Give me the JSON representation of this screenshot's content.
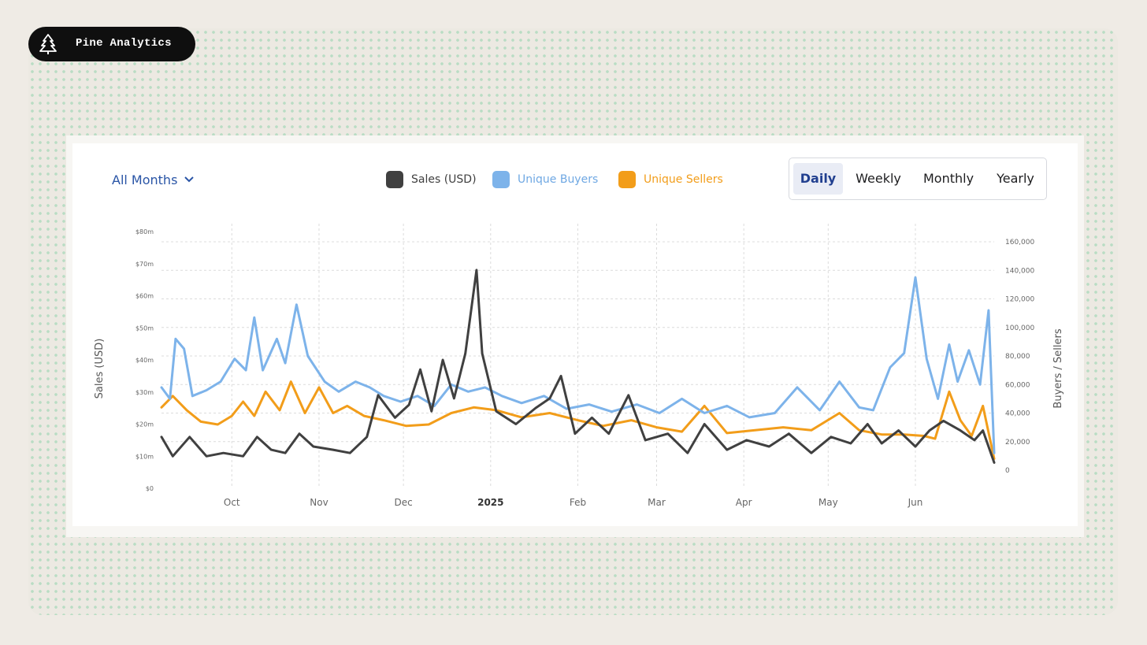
{
  "brand": {
    "name": "Pine Analytics",
    "logo_icon": "pine-tree-icon"
  },
  "controls": {
    "month_filter": {
      "label": "All Months",
      "icon": "chevron-down-icon"
    },
    "legend": [
      {
        "label": "Sales (USD)",
        "color": "#404040"
      },
      {
        "label": "Unique Buyers",
        "color": "#7db3ea"
      },
      {
        "label": "Unique Sellers",
        "color": "#f29d1a"
      }
    ],
    "periods": [
      "Daily",
      "Weekly",
      "Monthly",
      "Yearly"
    ],
    "active_period": "Daily"
  },
  "chart_data": {
    "type": "line",
    "title": "",
    "xlabel": "",
    "ylabel_left": "Sales (USD)",
    "ylabel_right": "Buyers / Sellers",
    "x_range": [
      "2024-09-06",
      "2025-06-29"
    ],
    "x_ticks": [
      {
        "date": "2024-10-01",
        "label": "Oct",
        "bold": false
      },
      {
        "date": "2024-11-01",
        "label": "Nov",
        "bold": false
      },
      {
        "date": "2024-12-01",
        "label": "Dec",
        "bold": false
      },
      {
        "date": "2025-01-01",
        "label": "2025",
        "bold": true
      },
      {
        "date": "2025-02-01",
        "label": "Feb",
        "bold": false
      },
      {
        "date": "2025-03-01",
        "label": "Mar",
        "bold": false
      },
      {
        "date": "2025-04-01",
        "label": "Apr",
        "bold": false
      },
      {
        "date": "2025-05-01",
        "label": "May",
        "bold": false
      },
      {
        "date": "2025-06-01",
        "label": "Jun",
        "bold": false
      }
    ],
    "y_left": {
      "min": 0,
      "max": 80000000,
      "ticks": [
        0,
        10000000,
        20000000,
        30000000,
        40000000,
        50000000,
        60000000,
        70000000,
        80000000
      ],
      "tick_labels": [
        "$0",
        "$10m",
        "$20m",
        "$30m",
        "$40m",
        "$50m",
        "$60m",
        "$70m",
        "$80m"
      ]
    },
    "y_right": {
      "min": 0,
      "max": 160000,
      "ticks": [
        0,
        20000,
        40000,
        60000,
        80000,
        100000,
        120000,
        140000,
        160000
      ],
      "tick_labels": [
        "0",
        "20,000",
        "40,000",
        "60,000",
        "80,000",
        "100,000",
        "120,000",
        "140,000",
        "160,000"
      ]
    },
    "series": [
      {
        "name": "Sales (USD)",
        "axis": "left",
        "color": "#404040",
        "points": [
          [
            "2024-09-06",
            16000000
          ],
          [
            "2024-09-10",
            10000000
          ],
          [
            "2024-09-16",
            16000000
          ],
          [
            "2024-09-22",
            10000000
          ],
          [
            "2024-09-28",
            11000000
          ],
          [
            "2024-10-05",
            10000000
          ],
          [
            "2024-10-10",
            16000000
          ],
          [
            "2024-10-15",
            12000000
          ],
          [
            "2024-10-20",
            11000000
          ],
          [
            "2024-10-25",
            17000000
          ],
          [
            "2024-10-30",
            13000000
          ],
          [
            "2024-11-06",
            12000000
          ],
          [
            "2024-11-12",
            11000000
          ],
          [
            "2024-11-18",
            16000000
          ],
          [
            "2024-11-22",
            29000000
          ],
          [
            "2024-11-28",
            22000000
          ],
          [
            "2024-12-03",
            26000000
          ],
          [
            "2024-12-07",
            37000000
          ],
          [
            "2024-12-11",
            24000000
          ],
          [
            "2024-12-15",
            40000000
          ],
          [
            "2024-12-19",
            28000000
          ],
          [
            "2024-12-23",
            42000000
          ],
          [
            "2024-12-27",
            68000000
          ],
          [
            "2024-12-29",
            42000000
          ],
          [
            "2025-01-03",
            24000000
          ],
          [
            "2025-01-10",
            20000000
          ],
          [
            "2025-01-17",
            25000000
          ],
          [
            "2025-01-22",
            28000000
          ],
          [
            "2025-01-26",
            35000000
          ],
          [
            "2025-01-31",
            17000000
          ],
          [
            "2025-02-06",
            22000000
          ],
          [
            "2025-02-12",
            17000000
          ],
          [
            "2025-02-19",
            29000000
          ],
          [
            "2025-02-25",
            15000000
          ],
          [
            "2025-03-05",
            17000000
          ],
          [
            "2025-03-12",
            11000000
          ],
          [
            "2025-03-18",
            20000000
          ],
          [
            "2025-03-26",
            12000000
          ],
          [
            "2025-04-02",
            15000000
          ],
          [
            "2025-04-10",
            13000000
          ],
          [
            "2025-04-17",
            17000000
          ],
          [
            "2025-04-25",
            11000000
          ],
          [
            "2025-05-02",
            16000000
          ],
          [
            "2025-05-09",
            14000000
          ],
          [
            "2025-05-15",
            20000000
          ],
          [
            "2025-05-20",
            14000000
          ],
          [
            "2025-05-26",
            18000000
          ],
          [
            "2025-06-01",
            13000000
          ],
          [
            "2025-06-06",
            18000000
          ],
          [
            "2025-06-11",
            21000000
          ],
          [
            "2025-06-17",
            18000000
          ],
          [
            "2025-06-22",
            15000000
          ],
          [
            "2025-06-25",
            18000000
          ],
          [
            "2025-06-29",
            8000000
          ]
        ]
      },
      {
        "name": "Unique Buyers",
        "axis": "right",
        "color": "#7db3ea",
        "points": [
          [
            "2024-09-06",
            58000
          ],
          [
            "2024-09-09",
            50000
          ],
          [
            "2024-09-11",
            92000
          ],
          [
            "2024-09-14",
            85000
          ],
          [
            "2024-09-17",
            52000
          ],
          [
            "2024-09-22",
            56000
          ],
          [
            "2024-09-27",
            62000
          ],
          [
            "2024-10-02",
            78000
          ],
          [
            "2024-10-06",
            70000
          ],
          [
            "2024-10-09",
            107000
          ],
          [
            "2024-10-12",
            70000
          ],
          [
            "2024-10-17",
            92000
          ],
          [
            "2024-10-20",
            75000
          ],
          [
            "2024-10-24",
            116000
          ],
          [
            "2024-10-28",
            80000
          ],
          [
            "2024-11-03",
            62000
          ],
          [
            "2024-11-08",
            55000
          ],
          [
            "2024-11-14",
            62000
          ],
          [
            "2024-11-19",
            58000
          ],
          [
            "2024-11-24",
            52000
          ],
          [
            "2024-11-30",
            48000
          ],
          [
            "2024-12-06",
            52000
          ],
          [
            "2024-12-12",
            45000
          ],
          [
            "2024-12-18",
            60000
          ],
          [
            "2024-12-24",
            55000
          ],
          [
            "2024-12-30",
            58000
          ],
          [
            "2025-01-05",
            52000
          ],
          [
            "2025-01-12",
            47000
          ],
          [
            "2025-01-20",
            52000
          ],
          [
            "2025-01-28",
            43000
          ],
          [
            "2025-02-05",
            46000
          ],
          [
            "2025-02-13",
            41000
          ],
          [
            "2025-02-22",
            46000
          ],
          [
            "2025-03-02",
            40000
          ],
          [
            "2025-03-10",
            50000
          ],
          [
            "2025-03-18",
            40000
          ],
          [
            "2025-03-26",
            45000
          ],
          [
            "2025-04-03",
            37000
          ],
          [
            "2025-04-12",
            40000
          ],
          [
            "2025-04-20",
            58000
          ],
          [
            "2025-04-28",
            42000
          ],
          [
            "2025-05-05",
            62000
          ],
          [
            "2025-05-12",
            44000
          ],
          [
            "2025-05-17",
            42000
          ],
          [
            "2025-05-23",
            72000
          ],
          [
            "2025-05-28",
            82000
          ],
          [
            "2025-06-01",
            135000
          ],
          [
            "2025-06-05",
            78000
          ],
          [
            "2025-06-09",
            50000
          ],
          [
            "2025-06-13",
            88000
          ],
          [
            "2025-06-16",
            62000
          ],
          [
            "2025-06-20",
            84000
          ],
          [
            "2025-06-24",
            60000
          ],
          [
            "2025-06-27",
            112000
          ],
          [
            "2025-06-29",
            12000
          ]
        ]
      },
      {
        "name": "Unique Sellers",
        "axis": "right",
        "color": "#f29d1a",
        "points": [
          [
            "2024-09-06",
            44000
          ],
          [
            "2024-09-10",
            52000
          ],
          [
            "2024-09-15",
            42000
          ],
          [
            "2024-09-20",
            34000
          ],
          [
            "2024-09-26",
            32000
          ],
          [
            "2024-10-01",
            38000
          ],
          [
            "2024-10-05",
            48000
          ],
          [
            "2024-10-09",
            38000
          ],
          [
            "2024-10-13",
            55000
          ],
          [
            "2024-10-18",
            42000
          ],
          [
            "2024-10-22",
            62000
          ],
          [
            "2024-10-27",
            40000
          ],
          [
            "2024-11-01",
            58000
          ],
          [
            "2024-11-06",
            40000
          ],
          [
            "2024-11-11",
            45000
          ],
          [
            "2024-11-17",
            38000
          ],
          [
            "2024-11-24",
            35000
          ],
          [
            "2024-12-02",
            31000
          ],
          [
            "2024-12-10",
            32000
          ],
          [
            "2024-12-18",
            40000
          ],
          [
            "2024-12-26",
            44000
          ],
          [
            "2025-01-03",
            42000
          ],
          [
            "2025-01-12",
            37000
          ],
          [
            "2025-01-22",
            40000
          ],
          [
            "2025-02-01",
            35000
          ],
          [
            "2025-02-10",
            31000
          ],
          [
            "2025-02-20",
            35000
          ],
          [
            "2025-03-01",
            30000
          ],
          [
            "2025-03-10",
            27000
          ],
          [
            "2025-03-18",
            45000
          ],
          [
            "2025-03-26",
            26000
          ],
          [
            "2025-04-05",
            28000
          ],
          [
            "2025-04-15",
            30000
          ],
          [
            "2025-04-25",
            28000
          ],
          [
            "2025-05-05",
            40000
          ],
          [
            "2025-05-12",
            28000
          ],
          [
            "2025-05-20",
            25000
          ],
          [
            "2025-05-28",
            25000
          ],
          [
            "2025-06-04",
            24000
          ],
          [
            "2025-06-08",
            22000
          ],
          [
            "2025-06-13",
            55000
          ],
          [
            "2025-06-17",
            35000
          ],
          [
            "2025-06-21",
            24000
          ],
          [
            "2025-06-25",
            45000
          ],
          [
            "2025-06-29",
            8000
          ]
        ]
      }
    ]
  }
}
